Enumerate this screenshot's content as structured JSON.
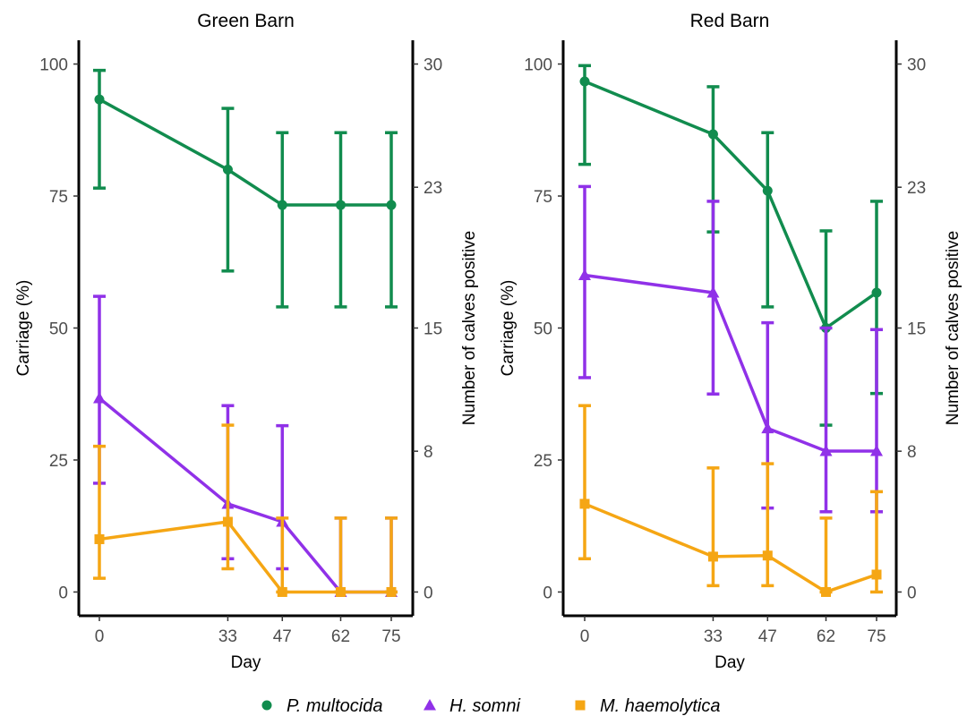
{
  "chart_data": [
    {
      "type": "line",
      "title": "Green Barn",
      "xlabel": "Day",
      "ylabel": "Carriage (%)",
      "y2label": "Number of calves positive",
      "x": [
        0,
        33,
        47,
        62,
        75
      ],
      "x_ticks": [
        "0",
        "33",
        "47",
        "62",
        "75"
      ],
      "ylim": [
        -4.5,
        104.5
      ],
      "y_ticks": [
        "0",
        "25",
        "50",
        "75",
        "100"
      ],
      "y2_ticks": [
        "0",
        "8",
        "15",
        "23",
        "30"
      ],
      "series": [
        {
          "name": "P. multocida",
          "marker": "circle",
          "color": "#118c4e",
          "values": [
            93.3,
            80.0,
            73.3,
            73.3,
            73.3
          ],
          "lower": [
            76.5,
            60.8,
            54.0,
            54.0,
            54.0
          ],
          "upper": [
            98.8,
            91.6,
            87.0,
            87.0,
            87.0
          ]
        },
        {
          "name": "H. somni",
          "marker": "triangle",
          "color": "#9031e8",
          "values": [
            36.7,
            16.7,
            13.3,
            0,
            0
          ],
          "lower": [
            20.6,
            6.3,
            4.4,
            0,
            0
          ],
          "upper": [
            56.0,
            35.3,
            31.5,
            14.0,
            14.0
          ]
        },
        {
          "name": "M. haemolytica",
          "marker": "square",
          "color": "#f5a614",
          "values": [
            10.0,
            13.3,
            0,
            0,
            0
          ],
          "lower": [
            2.6,
            4.4,
            0,
            0,
            0
          ],
          "upper": [
            27.6,
            31.6,
            14.0,
            14.0,
            14.0
          ]
        }
      ]
    },
    {
      "type": "line",
      "title": "Red Barn",
      "xlabel": "Day",
      "ylabel": "Carriage (%)",
      "y2label": "Number of calves positive",
      "x": [
        0,
        33,
        47,
        62,
        75
      ],
      "x_ticks": [
        "0",
        "33",
        "47",
        "62",
        "75"
      ],
      "ylim": [
        -4.5,
        104.5
      ],
      "y_ticks": [
        "0",
        "25",
        "50",
        "75",
        "100"
      ],
      "y2_ticks": [
        "0",
        "8",
        "15",
        "23",
        "30"
      ],
      "series": [
        {
          "name": "P. multocida",
          "marker": "circle",
          "color": "#118c4e",
          "values": [
            96.7,
            86.7,
            76.0,
            50.0,
            56.7
          ],
          "lower": [
            81.0,
            68.2,
            54.0,
            31.6,
            37.6
          ],
          "upper": [
            99.7,
            95.7,
            87.0,
            68.4,
            74.0
          ]
        },
        {
          "name": "H. somni",
          "marker": "triangle",
          "color": "#9031e8",
          "values": [
            60.0,
            56.7,
            31.0,
            26.7,
            26.7
          ],
          "lower": [
            40.6,
            37.5,
            15.9,
            15.2,
            15.2
          ],
          "upper": [
            76.8,
            74.0,
            51.0,
            50.0,
            49.7
          ]
        },
        {
          "name": "M. haemolytica",
          "marker": "square",
          "color": "#f5a614",
          "values": [
            16.7,
            6.7,
            6.9,
            0,
            3.3
          ],
          "lower": [
            6.3,
            1.2,
            1.2,
            0,
            0
          ],
          "upper": [
            35.3,
            23.5,
            24.3,
            14.0,
            19.0
          ]
        }
      ]
    }
  ],
  "legend": {
    "placement": "bottom",
    "items": [
      {
        "label": "P. multocida",
        "marker": "circle",
        "color": "#118c4e"
      },
      {
        "label": "H. somni",
        "marker": "triangle",
        "color": "#9031e8"
      },
      {
        "label": "M. haemolytica",
        "marker": "square",
        "color": "#f5a614"
      }
    ]
  }
}
